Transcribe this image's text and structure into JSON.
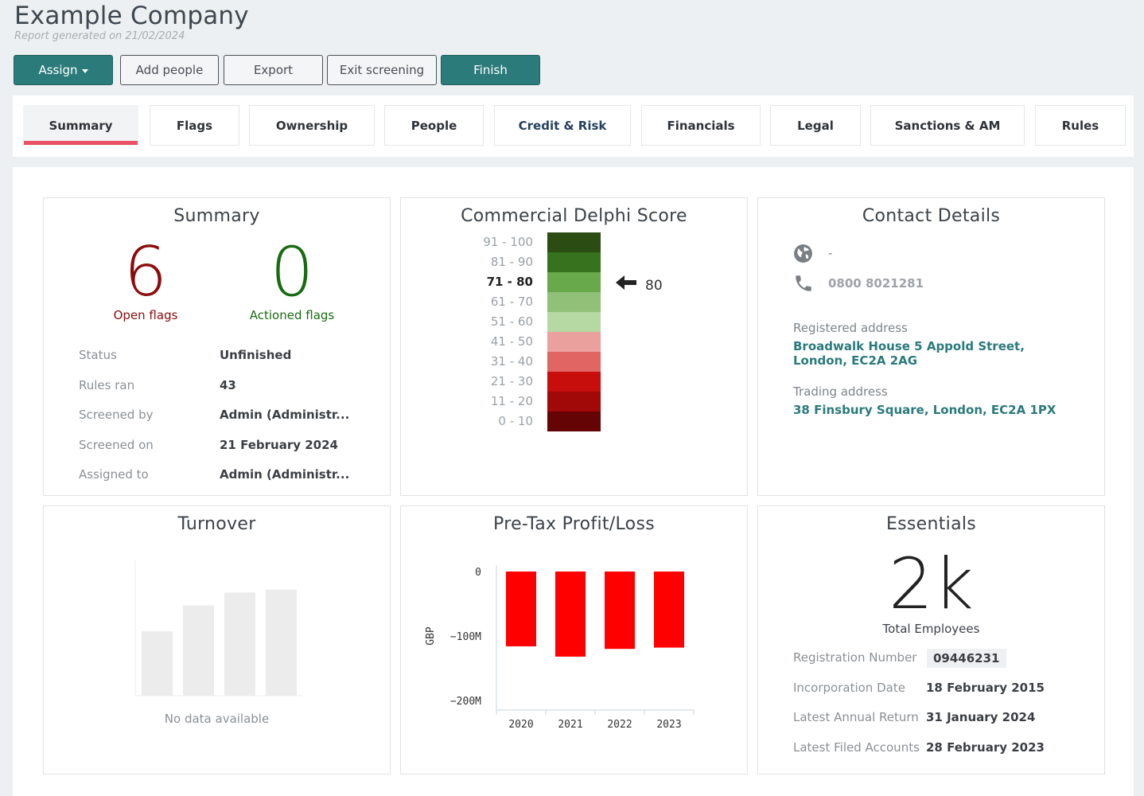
{
  "header": {
    "company": "Example Company",
    "generated": "Report generated on 21/02/2024"
  },
  "toolbar": {
    "assign": "Assign",
    "add_people": "Add people",
    "export": "Export",
    "exit_screening": "Exit screening",
    "finish": "Finish"
  },
  "tabs": [
    "Summary",
    "Flags",
    "Ownership",
    "People",
    "Credit & Risk",
    "Financials",
    "Legal",
    "Sanctions & AM",
    "Rules"
  ],
  "summary": {
    "title": "Summary",
    "open_flags": "6",
    "open_flags_label": "Open flags",
    "actioned_flags": "0",
    "actioned_flags_label": "Actioned flags",
    "rows": [
      {
        "key": "Status",
        "value": "Unfinished"
      },
      {
        "key": "Rules ran",
        "value": "43"
      },
      {
        "key": "Screened by",
        "value": "Admin (Administr..."
      },
      {
        "key": "Screened on",
        "value": "21 February 2024"
      },
      {
        "key": "Assigned to",
        "value": "Admin (Administr..."
      }
    ]
  },
  "delphi": {
    "title": "Commercial Delphi Score",
    "bands": [
      {
        "label": "91 - 100",
        "color": "#2b4d13"
      },
      {
        "label": "81 - 90",
        "color": "#37731e"
      },
      {
        "label": "71 - 80",
        "color": "#68a94c"
      },
      {
        "label": "61 - 70",
        "color": "#91c178"
      },
      {
        "label": "51 - 60",
        "color": "#b6d8a3"
      },
      {
        "label": "41 - 50",
        "color": "#eaa09d"
      },
      {
        "label": "31 - 40",
        "color": "#e06563"
      },
      {
        "label": "21 - 30",
        "color": "#c80d0d"
      },
      {
        "label": "11 - 20",
        "color": "#a10808"
      },
      {
        "label": "0 - 10",
        "color": "#640404"
      }
    ],
    "active_band_index": 2,
    "score": "80"
  },
  "contact": {
    "title": "Contact Details",
    "website": "-",
    "phone": "0800 8021281",
    "registered_label": "Registered address",
    "registered_address": "Broadwalk House 5 Appold Street, London, EC2A 2AG",
    "trading_label": "Trading address",
    "trading_address": "38 Finsbury Square, London, EC2A 1PX"
  },
  "turnover": {
    "title": "Turnover",
    "no_data": "No data available"
  },
  "profit": {
    "title": "Pre-Tax Profit/Loss"
  },
  "essentials": {
    "title": "Essentials",
    "employees": "2k",
    "employees_label": "Total Employees",
    "rows": [
      {
        "key": "Registration Number",
        "value": "09446231"
      },
      {
        "key": "Incorporation Date",
        "value": "18 February 2015"
      },
      {
        "key": "Latest Annual Return",
        "value": "31 January 2024"
      },
      {
        "key": "Latest Filed Accounts",
        "value": "28 February 2023"
      }
    ]
  },
  "colors": {
    "primary": "#2c7b7b",
    "tab_active_underline": "#ea5166",
    "open_flags": "#8b0c0c",
    "actioned_flags": "#196b12",
    "link": "#2b7a7b",
    "bar": "#ff0000"
  },
  "chart_data": [
    {
      "type": "bar",
      "title": "Pre-Tax Profit/Loss",
      "categories": [
        "2020",
        "2021",
        "2022",
        "2023"
      ],
      "values": [
        -116,
        -132,
        -120,
        -118
      ],
      "ylabel": "GBP",
      "yticks": [
        "0",
        "−100M",
        "−200M"
      ],
      "ylim": [
        -200,
        0
      ],
      "units": "GBP millions",
      "color": "#ff0000",
      "grid": false,
      "legend": "none"
    },
    {
      "type": "bar",
      "title": "Turnover",
      "note": "No data available",
      "placeholder_relative_heights": [
        0.45,
        0.63,
        0.72,
        0.74
      ]
    }
  ]
}
